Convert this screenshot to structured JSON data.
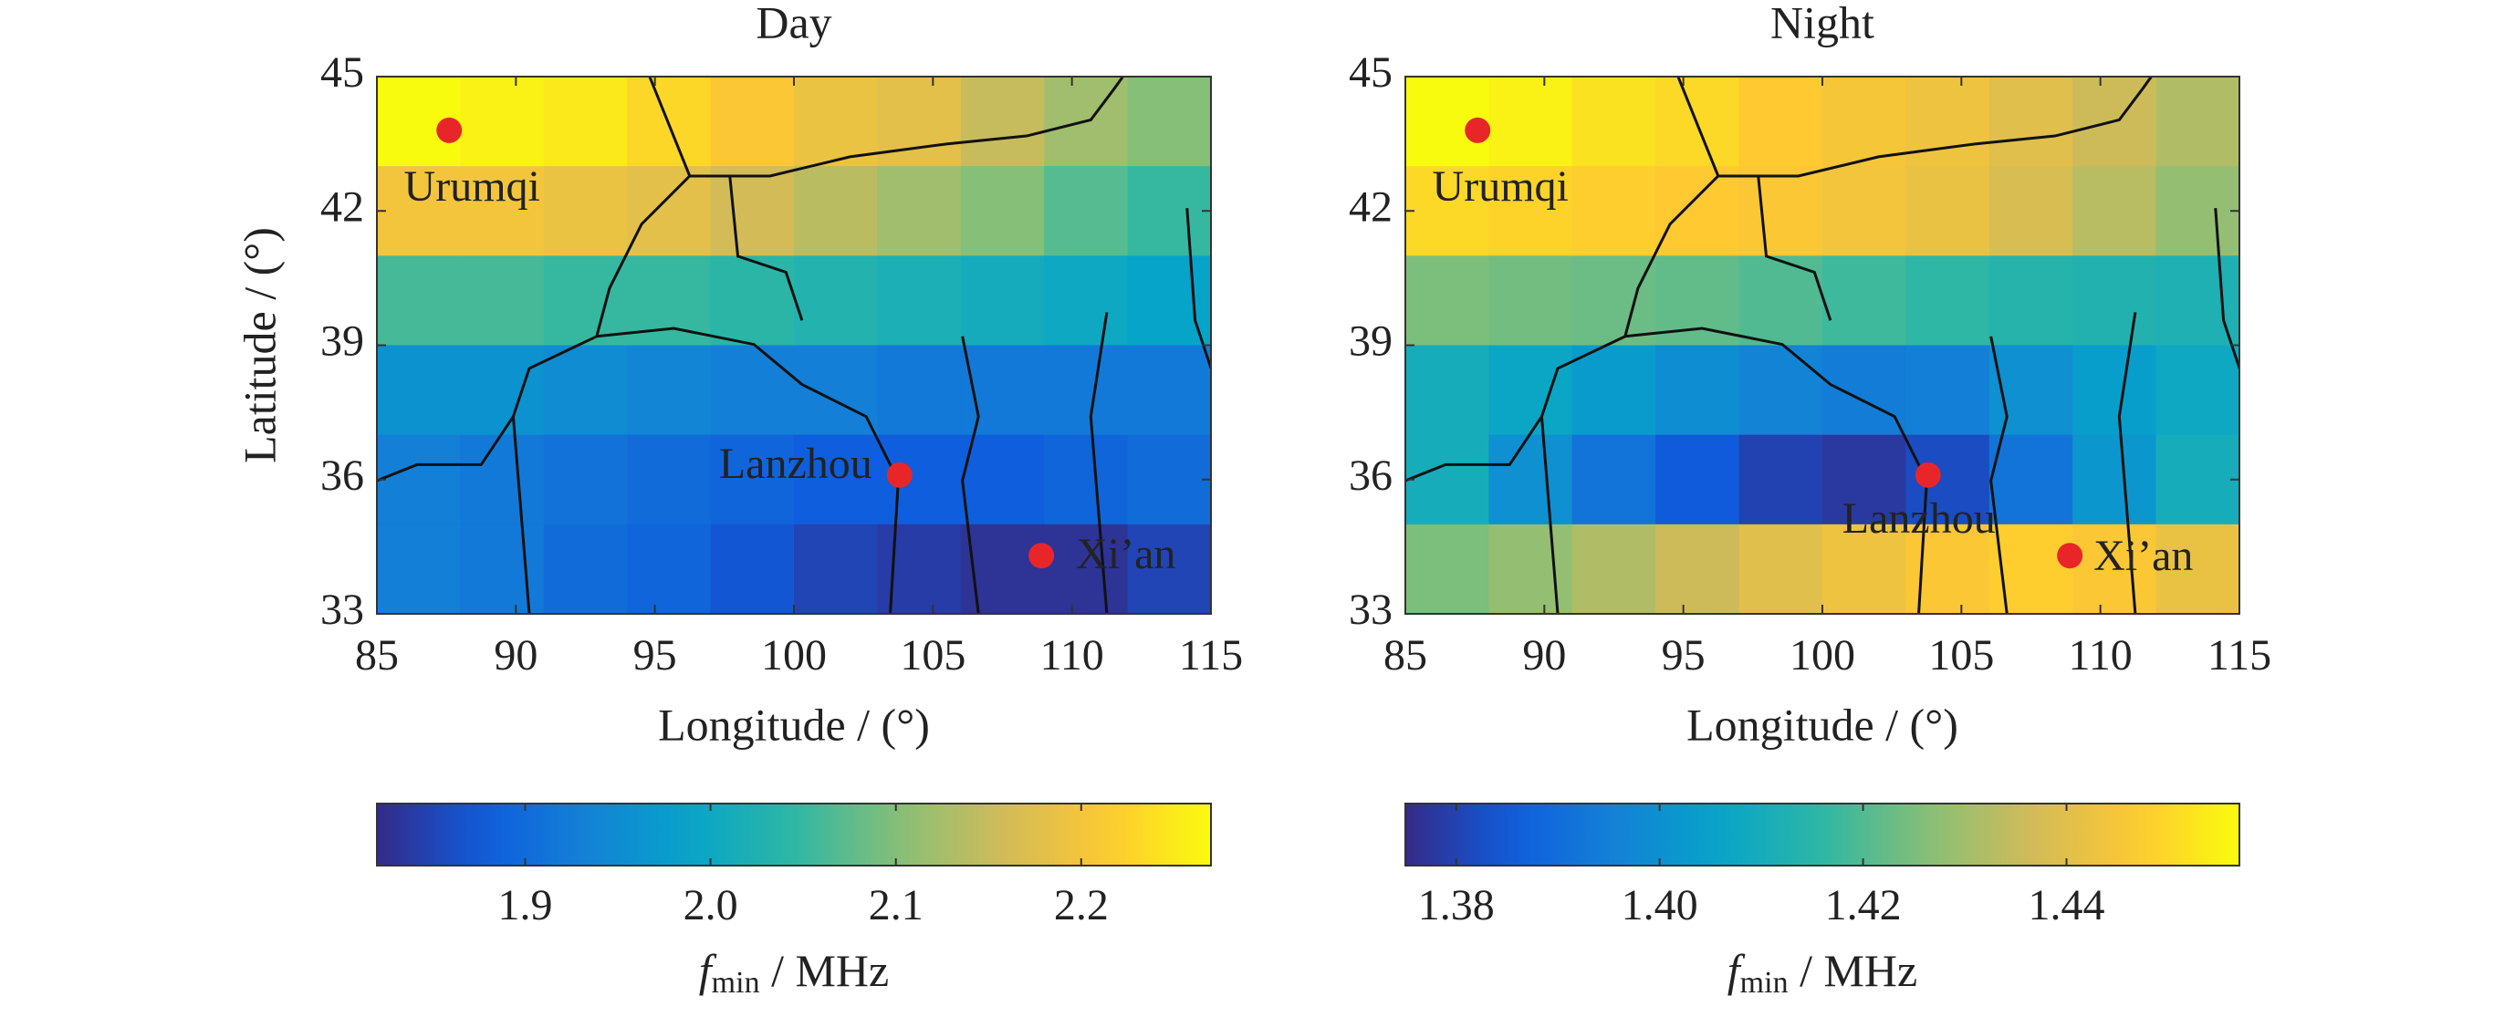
{
  "chart_data": [
    {
      "type": "heatmap",
      "title": "Day",
      "xlabel": "Longitude / (°)",
      "ylabel": "Latitude / (°)",
      "x": [
        85,
        88,
        91,
        94,
        97,
        100,
        103,
        106,
        109,
        112,
        115
      ],
      "y": [
        45,
        43,
        41,
        39,
        37,
        35,
        33
      ],
      "values": [
        [
          2.27,
          2.26,
          2.25,
          2.23,
          2.21,
          2.19,
          2.18,
          2.15,
          2.12,
          2.1
        ],
        [
          2.2,
          2.2,
          2.19,
          2.18,
          2.16,
          2.14,
          2.12,
          2.1,
          2.07,
          2.05
        ],
        [
          2.06,
          2.06,
          2.05,
          2.05,
          2.04,
          2.03,
          2.02,
          2.01,
          2.0,
          1.99
        ],
        [
          1.96,
          1.96,
          1.95,
          1.94,
          1.93,
          1.93,
          1.92,
          1.92,
          1.92,
          1.92
        ],
        [
          1.93,
          1.92,
          1.91,
          1.9,
          1.89,
          1.88,
          1.88,
          1.88,
          1.89,
          1.9
        ],
        [
          1.93,
          1.92,
          1.9,
          1.89,
          1.87,
          1.85,
          1.84,
          1.83,
          1.83,
          1.85
        ]
      ],
      "xlim": [
        85,
        115
      ],
      "ylim": [
        33,
        45
      ],
      "xticks": [
        85,
        90,
        95,
        100,
        105,
        110,
        115
      ],
      "yticks": [
        33,
        36,
        39,
        42,
        45
      ],
      "colormap": "parula",
      "clim": [
        1.82,
        2.27
      ],
      "cticks": [
        1.9,
        {
          "value": 2,
          "label": "2.0"
        },
        2.1,
        2.2
      ],
      "colorbar_label": {
        "symbol": "f",
        "subscript": "min",
        "unit": " / MHz"
      },
      "points": [
        {
          "name": "Urumqi",
          "lon": 87.6,
          "lat": 43.8
        },
        {
          "name": "Lanzhou",
          "lon": 103.8,
          "lat": 36.1
        },
        {
          "name": "Xi’an",
          "lon": 108.9,
          "lat": 34.3
        }
      ],
      "point_color": "#e8262a"
    },
    {
      "type": "heatmap",
      "title": "Night",
      "xlabel": "Longitude / (°)",
      "x": [
        85,
        88,
        91,
        94,
        97,
        100,
        103,
        106,
        109,
        112,
        115
      ],
      "y": [
        45,
        43,
        41,
        39,
        37,
        35,
        33
      ],
      "values": [
        [
          1.457,
          1.455,
          1.452,
          1.45,
          1.447,
          1.445,
          1.443,
          1.44,
          1.436,
          1.432
        ],
        [
          1.45,
          1.449,
          1.448,
          1.447,
          1.446,
          1.444,
          1.442,
          1.438,
          1.433,
          1.428
        ],
        [
          1.425,
          1.424,
          1.423,
          1.422,
          1.42,
          1.418,
          1.416,
          1.414,
          1.413,
          1.412
        ],
        [
          1.41,
          1.407,
          1.403,
          1.399,
          1.396,
          1.394,
          1.395,
          1.4,
          1.404,
          1.408
        ],
        [
          1.41,
          1.4,
          1.392,
          1.385,
          1.38,
          1.378,
          1.382,
          1.392,
          1.402,
          1.41
        ],
        [
          1.425,
          1.428,
          1.432,
          1.436,
          1.44,
          1.443,
          1.446,
          1.448,
          1.446,
          1.442
        ]
      ],
      "xlim": [
        85,
        115
      ],
      "ylim": [
        33,
        45
      ],
      "xticks": [
        85,
        90,
        95,
        100,
        105,
        110,
        115
      ],
      "yticks": [
        33,
        36,
        39,
        42,
        45
      ],
      "colormap": "parula",
      "clim": [
        1.375,
        1.457
      ],
      "cticks": [
        1.38,
        {
          "value": 1.4,
          "label": "1.40"
        },
        1.42,
        1.44
      ],
      "colorbar_label": {
        "symbol": "f",
        "subscript": "min",
        "unit": " / MHz"
      },
      "points": [
        {
          "name": "Urumqi",
          "lon": 87.6,
          "lat": 43.8
        },
        {
          "name": "Lanzhou",
          "lon": 103.8,
          "lat": 36.1
        },
        {
          "name": "Xi’an",
          "lon": 108.9,
          "lat": 34.3
        }
      ],
      "point_color": "#e8262a"
    }
  ]
}
